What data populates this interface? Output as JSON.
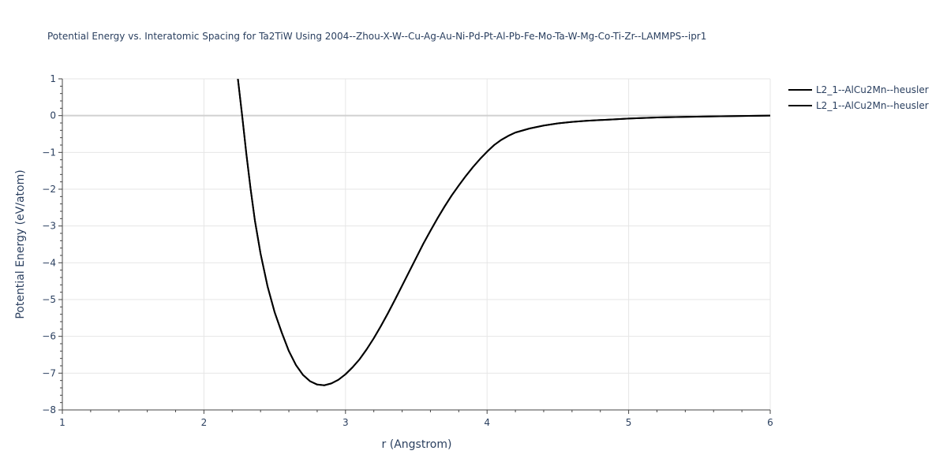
{
  "chart_data": {
    "type": "line",
    "title": "Potential Energy vs. Interatomic Spacing for Ta2TiW Using 2004--Zhou-X-W--Cu-Ag-Au-Ni-Pd-Pt-Al-Pb-Fe-Mo-Ta-W-Mg-Co-Ti-Zr--LAMMPS--ipr1",
    "xlabel": "r (Angstrom)",
    "ylabel": "Potential Energy (eV/atom)",
    "xlim": [
      1,
      6
    ],
    "ylim": [
      -8,
      1
    ],
    "x_ticks": [
      1,
      2,
      3,
      4,
      5,
      6
    ],
    "y_ticks": [
      1,
      0,
      -1,
      -2,
      -3,
      -4,
      -5,
      -6,
      -7,
      -8
    ],
    "x_tick_labels": [
      "1",
      "2",
      "3",
      "4",
      "5",
      "6"
    ],
    "y_tick_labels": [
      "1",
      "0",
      "−1",
      "−2",
      "−3",
      "−4",
      "−5",
      "−6",
      "−7",
      "−8"
    ],
    "grid": true,
    "legend_position": "top-right",
    "series": [
      {
        "name": "L2_1--AlCu2Mn--heusler",
        "color": "#000000",
        "x": [
          2.24,
          2.27,
          2.3,
          2.33,
          2.36,
          2.4,
          2.45,
          2.5,
          2.55,
          2.6,
          2.65,
          2.7,
          2.75,
          2.8,
          2.85,
          2.9,
          2.95,
          3.0,
          3.05,
          3.1,
          3.15,
          3.2,
          3.25,
          3.3,
          3.35,
          3.4,
          3.45,
          3.5,
          3.55,
          3.6,
          3.65,
          3.7,
          3.75,
          3.8,
          3.85,
          3.9,
          3.95,
          4.0,
          4.05,
          4.1,
          4.15,
          4.2,
          4.3,
          4.4,
          4.5,
          4.6,
          4.7,
          4.8,
          4.9,
          5.0,
          5.2,
          5.4,
          5.6,
          5.8,
          6.0
        ],
        "y": [
          1.0,
          0.0,
          -1.05,
          -2.0,
          -2.85,
          -3.75,
          -4.65,
          -5.35,
          -5.9,
          -6.4,
          -6.78,
          -7.05,
          -7.22,
          -7.31,
          -7.33,
          -7.28,
          -7.18,
          -7.03,
          -6.84,
          -6.62,
          -6.35,
          -6.05,
          -5.72,
          -5.37,
          -5.0,
          -4.62,
          -4.24,
          -3.86,
          -3.48,
          -3.13,
          -2.79,
          -2.47,
          -2.17,
          -1.9,
          -1.64,
          -1.4,
          -1.18,
          -0.98,
          -0.8,
          -0.66,
          -0.55,
          -0.46,
          -0.35,
          -0.27,
          -0.21,
          -0.17,
          -0.14,
          -0.12,
          -0.1,
          -0.08,
          -0.05,
          -0.035,
          -0.02,
          -0.01,
          0.0
        ]
      },
      {
        "name": "L2_1--AlCu2Mn--heusler",
        "color": "#000000",
        "x": [
          2.24,
          2.27,
          2.3,
          2.33,
          2.36,
          2.4,
          2.45,
          2.5,
          2.55,
          2.6,
          2.65,
          2.7,
          2.75,
          2.8,
          2.85,
          2.9,
          2.95,
          3.0,
          3.05,
          3.1,
          3.15,
          3.2,
          3.25,
          3.3,
          3.35,
          3.4,
          3.45,
          3.5,
          3.55,
          3.6,
          3.65,
          3.7,
          3.75,
          3.8,
          3.85,
          3.9,
          3.95,
          4.0,
          4.05,
          4.1,
          4.15,
          4.2,
          4.3,
          4.4,
          4.5,
          4.6,
          4.7,
          4.8,
          4.9,
          5.0,
          5.2,
          5.4,
          5.6,
          5.8,
          6.0
        ],
        "y": [
          1.0,
          0.0,
          -1.05,
          -2.0,
          -2.85,
          -3.75,
          -4.65,
          -5.35,
          -5.9,
          -6.4,
          -6.78,
          -7.05,
          -7.22,
          -7.31,
          -7.33,
          -7.28,
          -7.18,
          -7.03,
          -6.84,
          -6.62,
          -6.35,
          -6.05,
          -5.72,
          -5.37,
          -5.0,
          -4.62,
          -4.24,
          -3.86,
          -3.48,
          -3.13,
          -2.79,
          -2.47,
          -2.17,
          -1.9,
          -1.64,
          -1.4,
          -1.18,
          -0.98,
          -0.8,
          -0.66,
          -0.55,
          -0.46,
          -0.35,
          -0.27,
          -0.21,
          -0.17,
          -0.14,
          -0.12,
          -0.1,
          -0.08,
          -0.05,
          -0.035,
          -0.02,
          -0.01,
          0.0
        ]
      }
    ]
  }
}
